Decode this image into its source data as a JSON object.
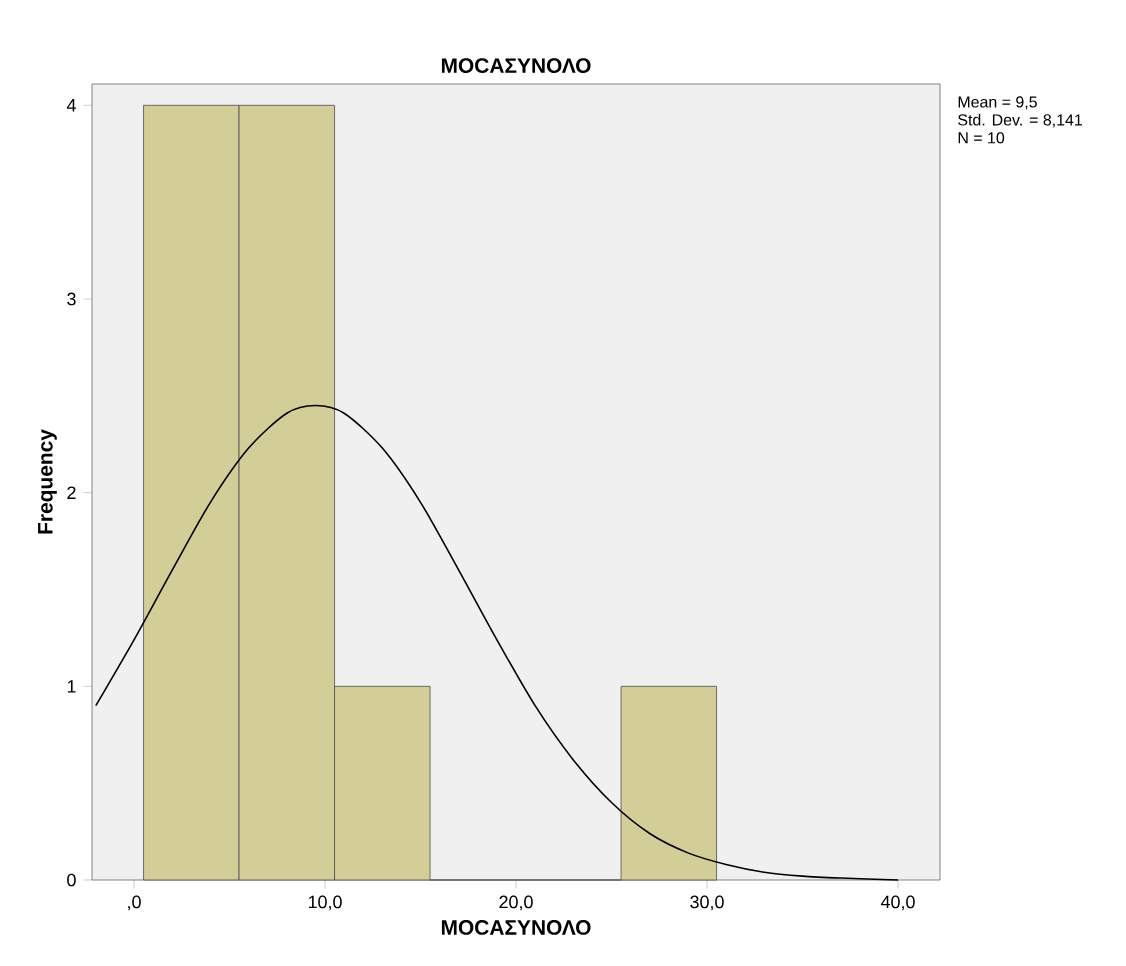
{
  "chart_data": {
    "type": "histogram",
    "title": "ΜΟCΑΣΥΝΟΛΟ",
    "xlabel": "ΜΟCΑΣΥΝΟΛΟ",
    "ylabel": "Frequency",
    "bins": [
      0.5,
      5.5,
      10.5,
      15.5,
      20.5,
      25.5,
      30.5
    ],
    "values": [
      4,
      4,
      1,
      0,
      0,
      1
    ],
    "color": "#d3ce98",
    "series": [
      {
        "type": "line",
        "color": "#000000",
        "x": [
          -2,
          0,
          2,
          4,
          6,
          8,
          9.5,
          11,
          13,
          15,
          17,
          19,
          21,
          23,
          25,
          27,
          29,
          31,
          33,
          35,
          37,
          40
        ],
        "values": [
          0.9,
          1.24,
          1.6,
          1.95,
          2.23,
          2.41,
          2.45,
          2.41,
          2.23,
          1.95,
          1.6,
          1.24,
          0.9,
          0.62,
          0.4,
          0.24,
          0.14,
          0.08,
          0.04,
          0.02,
          0.01,
          0
        ]
      }
    ],
    "xlim": [
      -2.2,
      42.2
    ],
    "ylim": [
      0,
      4.11
    ],
    "xticks": [
      {
        "value": 0,
        "label": ",0"
      },
      {
        "value": 10,
        "label": "10,0"
      },
      {
        "value": 20,
        "label": "20,0"
      },
      {
        "value": 30,
        "label": "30,0"
      },
      {
        "value": 40,
        "label": "40,0"
      }
    ],
    "yticks": [
      0,
      1,
      2,
      3,
      4
    ],
    "annotations": [
      "Mean = 9,5",
      "Std. Dev. = 8,141",
      "N = 10"
    ]
  }
}
